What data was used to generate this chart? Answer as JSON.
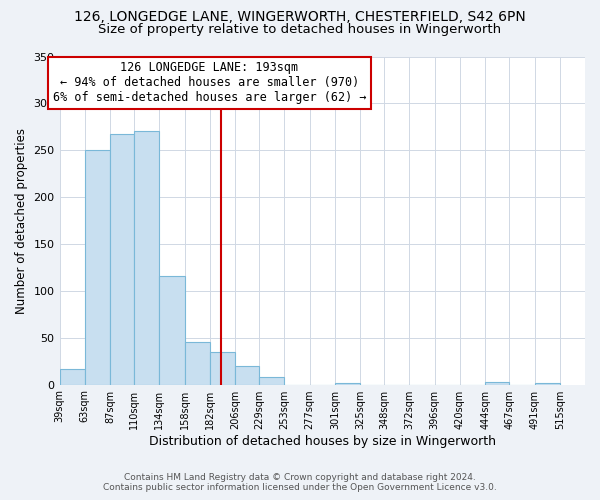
{
  "title": "126, LONGEDGE LANE, WINGERWORTH, CHESTERFIELD, S42 6PN",
  "subtitle": "Size of property relative to detached houses in Wingerworth",
  "xlabel": "Distribution of detached houses by size in Wingerworth",
  "ylabel": "Number of detached properties",
  "bar_left_edges": [
    39,
    63,
    87,
    110,
    134,
    158,
    182,
    206,
    229,
    253,
    277,
    301,
    325,
    348,
    372,
    396,
    420,
    444,
    467,
    491
  ],
  "bar_widths": [
    24,
    24,
    23,
    24,
    24,
    24,
    24,
    23,
    24,
    24,
    24,
    24,
    23,
    24,
    24,
    24,
    24,
    23,
    24,
    24
  ],
  "bar_heights": [
    17,
    250,
    267,
    271,
    116,
    45,
    35,
    20,
    8,
    0,
    0,
    2,
    0,
    0,
    0,
    0,
    0,
    3,
    0,
    2
  ],
  "bar_color": "#c8dff0",
  "bar_edgecolor": "#7ab8d8",
  "x_tick_labels": [
    "39sqm",
    "63sqm",
    "87sqm",
    "110sqm",
    "134sqm",
    "158sqm",
    "182sqm",
    "206sqm",
    "229sqm",
    "253sqm",
    "277sqm",
    "301sqm",
    "325sqm",
    "348sqm",
    "372sqm",
    "396sqm",
    "420sqm",
    "444sqm",
    "467sqm",
    "491sqm",
    "515sqm"
  ],
  "x_tick_positions": [
    39,
    63,
    87,
    110,
    134,
    158,
    182,
    206,
    229,
    253,
    277,
    301,
    325,
    348,
    372,
    396,
    420,
    444,
    467,
    491,
    515
  ],
  "ylim": [
    0,
    350
  ],
  "yticks": [
    0,
    50,
    100,
    150,
    200,
    250,
    300,
    350
  ],
  "xlim_min": 39,
  "xlim_max": 539,
  "vline_x": 193,
  "vline_color": "#cc0000",
  "annotation_title": "126 LONGEDGE LANE: 193sqm",
  "annotation_line1": "← 94% of detached houses are smaller (970)",
  "annotation_line2": "6% of semi-detached houses are larger (62) →",
  "annotation_box_color": "#cc0000",
  "annotation_fontsize": 8.5,
  "title_fontsize": 10,
  "subtitle_fontsize": 9.5,
  "ylabel_fontsize": 8.5,
  "xlabel_fontsize": 9,
  "tick_fontsize": 7,
  "footer_line1": "Contains HM Land Registry data © Crown copyright and database right 2024.",
  "footer_line2": "Contains public sector information licensed under the Open Government Licence v3.0.",
  "background_color": "#eef2f7",
  "plot_background_color": "#ffffff",
  "grid_color": "#d0d8e4"
}
